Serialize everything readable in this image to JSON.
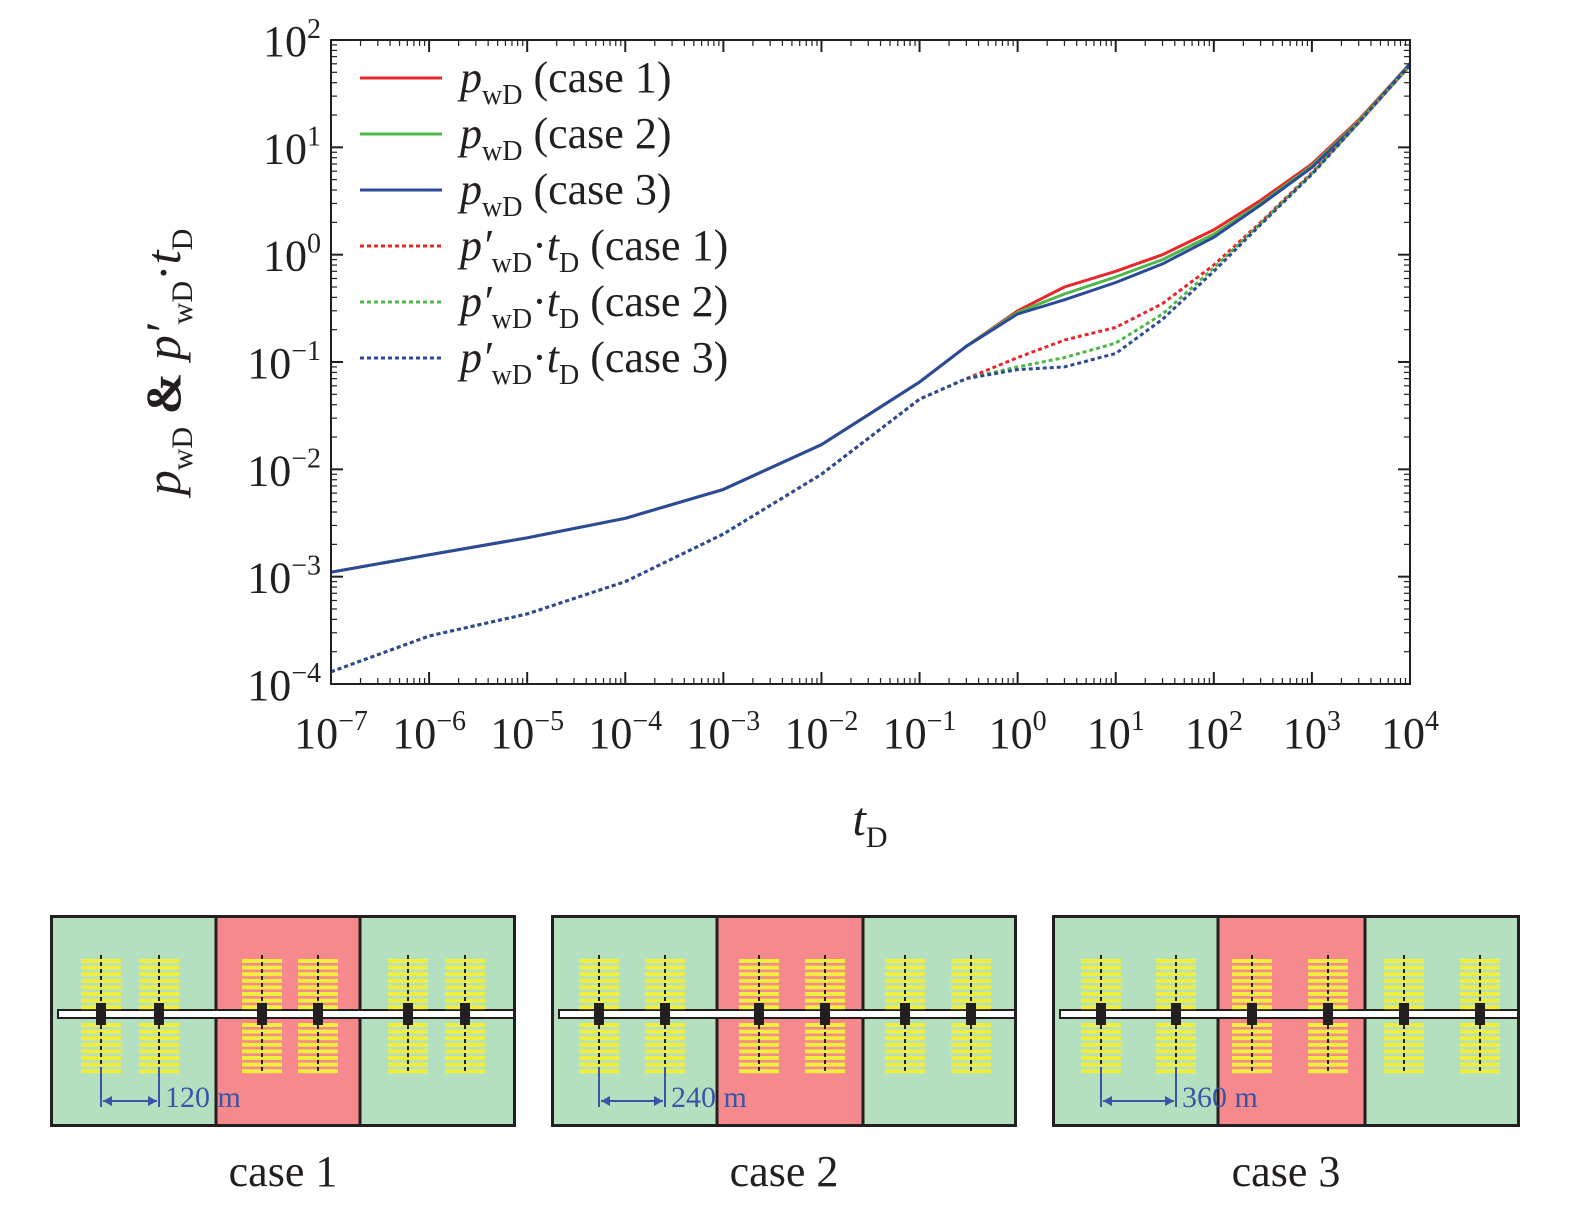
{
  "chart_data": {
    "type": "line",
    "xlabel": "t_D",
    "ylabel": "p_wD & p'_wD·t_D",
    "x_scale": "log",
    "y_scale": "log",
    "xlim": [
      1e-07,
      10000
    ],
    "ylim": [
      0.0001,
      100
    ],
    "x_ticks": [
      "10^-7",
      "10^-6",
      "10^-5",
      "10^-4",
      "10^-3",
      "10^-2",
      "10^-1",
      "10^0",
      "10^1",
      "10^2",
      "10^3",
      "10^4"
    ],
    "y_ticks": [
      "10^-4",
      "10^-3",
      "10^-2",
      "10^-1",
      "10^0",
      "10^1",
      "10^2"
    ],
    "legend_position": "top-left",
    "series": [
      {
        "name": "p_wD (case 1)",
        "color": "#e8262b",
        "dash": "solid",
        "x": [
          1e-07,
          1e-06,
          1e-05,
          0.0001,
          0.001,
          0.01,
          0.1,
          0.3,
          1,
          3,
          10,
          30,
          100,
          300,
          1000,
          3000,
          10000
        ],
        "y": [
          0.0011,
          0.0016,
          0.0023,
          0.0035,
          0.0065,
          0.017,
          0.065,
          0.14,
          0.3,
          0.5,
          0.7,
          1.0,
          1.7,
          3.2,
          7.0,
          18,
          60
        ]
      },
      {
        "name": "p_wD (case 2)",
        "color": "#4fb748",
        "dash": "solid",
        "x": [
          1e-07,
          1e-06,
          1e-05,
          0.0001,
          0.001,
          0.01,
          0.1,
          0.3,
          1,
          3,
          10,
          30,
          100,
          300,
          1000,
          3000,
          10000
        ],
        "y": [
          0.0011,
          0.0016,
          0.0023,
          0.0035,
          0.0065,
          0.017,
          0.065,
          0.14,
          0.29,
          0.43,
          0.62,
          0.9,
          1.55,
          3.0,
          6.7,
          17.5,
          60
        ]
      },
      {
        "name": "p_wD (case 3)",
        "color": "#2c4a9a",
        "dash": "solid",
        "x": [
          1e-07,
          1e-06,
          1e-05,
          0.0001,
          0.001,
          0.01,
          0.1,
          0.3,
          1,
          3,
          10,
          30,
          100,
          300,
          1000,
          3000,
          10000
        ],
        "y": [
          0.0011,
          0.0016,
          0.0023,
          0.0035,
          0.0065,
          0.017,
          0.065,
          0.14,
          0.28,
          0.38,
          0.55,
          0.82,
          1.45,
          2.9,
          6.5,
          17,
          60
        ]
      },
      {
        "name": "p'_wD·t_D (case 1)",
        "color": "#e8262b",
        "dash": "dotted",
        "x": [
          1e-07,
          1e-06,
          1e-05,
          0.0001,
          0.001,
          0.01,
          0.1,
          0.3,
          1,
          3,
          10,
          30,
          100,
          300,
          1000,
          3000,
          10000
        ],
        "y": [
          0.00013,
          0.00028,
          0.00045,
          0.0009,
          0.0025,
          0.009,
          0.045,
          0.07,
          0.11,
          0.16,
          0.21,
          0.35,
          0.8,
          2.0,
          5.8,
          17,
          58
        ]
      },
      {
        "name": "p'_wD·t_D (case 2)",
        "color": "#4fb748",
        "dash": "dotted",
        "x": [
          1e-07,
          1e-06,
          1e-05,
          0.0001,
          0.001,
          0.01,
          0.1,
          0.3,
          1,
          3,
          10,
          30,
          100,
          300,
          1000,
          3000,
          10000
        ],
        "y": [
          0.00013,
          0.00028,
          0.00045,
          0.0009,
          0.0025,
          0.009,
          0.045,
          0.07,
          0.09,
          0.11,
          0.15,
          0.28,
          0.75,
          1.95,
          5.7,
          17,
          58
        ]
      },
      {
        "name": "p'_wD·t_D (case 3)",
        "color": "#2c4a9a",
        "dash": "dotted",
        "x": [
          1e-07,
          1e-06,
          1e-05,
          0.0001,
          0.001,
          0.01,
          0.1,
          0.3,
          1,
          3,
          10,
          30,
          100,
          300,
          1000,
          3000,
          10000
        ],
        "y": [
          0.00013,
          0.00028,
          0.00045,
          0.0009,
          0.0025,
          0.009,
          0.045,
          0.07,
          0.085,
          0.09,
          0.12,
          0.25,
          0.7,
          1.9,
          5.6,
          17,
          58
        ]
      }
    ]
  },
  "schematics": [
    {
      "case_label": "case 1",
      "spacing_label": "120 m"
    },
    {
      "case_label": "case 2",
      "spacing_label": "240 m"
    },
    {
      "case_label": "case 3",
      "spacing_label": "360 m"
    }
  ],
  "colors": {
    "outer_region": "#b5e0c0",
    "center_region": "#f5898d",
    "fracture": "#f0ee3c",
    "annotation": "#3a55a8"
  }
}
